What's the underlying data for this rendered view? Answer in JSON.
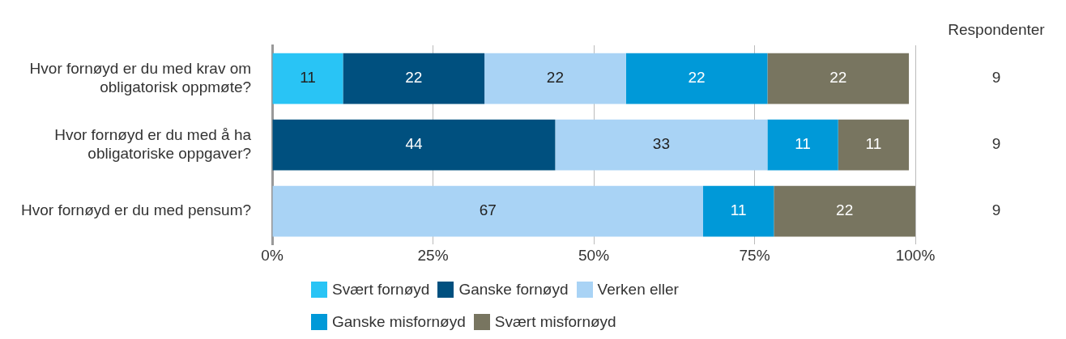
{
  "chart_data": {
    "type": "bar",
    "orientation": "horizontal",
    "stacked": true,
    "data_labels": true,
    "grid": "x",
    "legend": "bottom",
    "categories": [
      "Hvor fornøyd er du med krav om obligatorisk oppmøte?",
      "Hvor fornøyd er du med å ha obligatoriske oppgaver?",
      "Hvor fornøyd er du med pensum?"
    ],
    "xlim": [
      0,
      100
    ],
    "xticks": [
      {
        "value": 0,
        "label": "0%"
      },
      {
        "value": 25,
        "label": "25%"
      },
      {
        "value": 50,
        "label": "50%"
      },
      {
        "value": 75,
        "label": "75%"
      },
      {
        "value": 100,
        "label": "100%"
      }
    ],
    "series": [
      {
        "name": "Svært fornøyd",
        "color": "#29c4f5",
        "values": [
          11,
          null,
          null
        ]
      },
      {
        "name": "Ganske fornøyd",
        "color": "#00507f",
        "values": [
          22,
          44,
          null
        ]
      },
      {
        "name": "Verken eller",
        "color": "#a9d3f5",
        "values": [
          22,
          33,
          67
        ]
      },
      {
        "name": "Ganske misfornøyd",
        "color": "#0099d8",
        "values": [
          22,
          11,
          11
        ]
      },
      {
        "name": "Svært misfornøyd",
        "color": "#787560",
        "values": [
          22,
          11,
          22
        ]
      }
    ],
    "annotations": [
      "Respondenter",
      "9",
      "9",
      "9"
    ]
  }
}
